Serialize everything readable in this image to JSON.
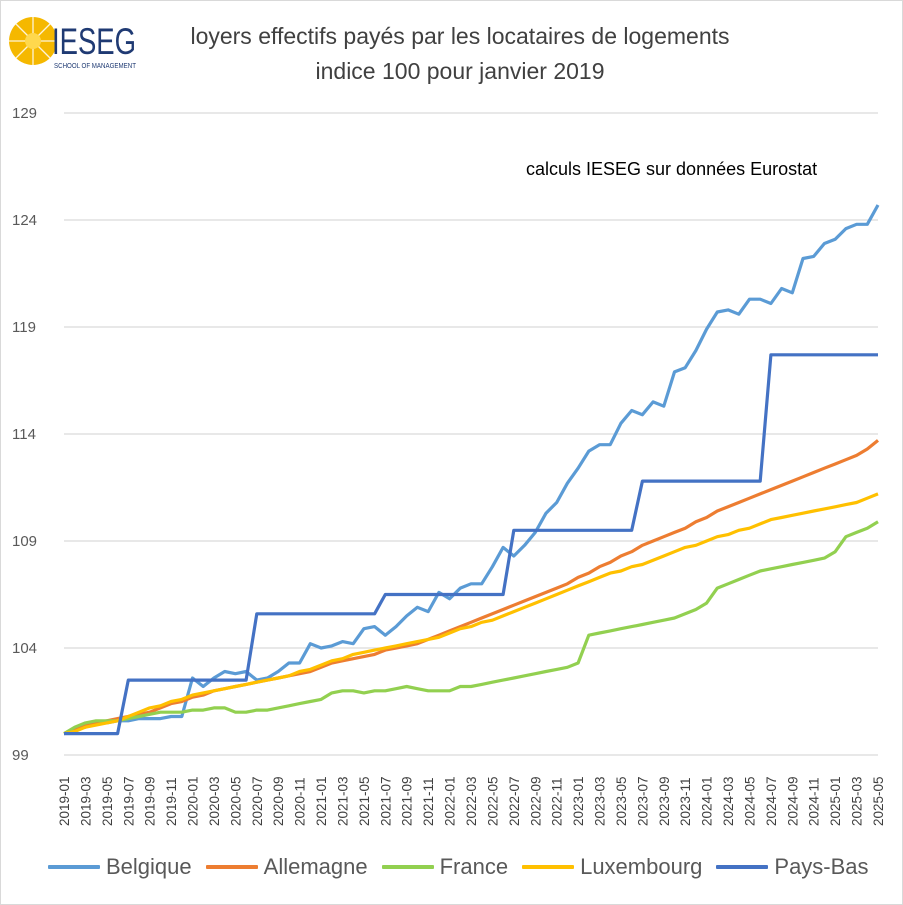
{
  "header": {
    "logo": {
      "icon": "sun-logo-icon",
      "name": "IESEG",
      "subtitle": "SCHOOL OF MANAGEMENT",
      "color": "#f5b800"
    },
    "title_line1": "loyers effectifs payés par les locataires de logements",
    "title_line2": "indice 100 pour janvier 2019"
  },
  "annotation": "calculs IESEG sur données Eurostat",
  "chart_data": {
    "type": "line",
    "title": "loyers effectifs payés par les locataires de logements",
    "subtitle": "indice 100 pour janvier 2019",
    "xlabel": "",
    "ylabel": "",
    "ylim": [
      99,
      129
    ],
    "yticks": [
      99,
      104,
      109,
      114,
      119,
      124,
      129
    ],
    "grid": true,
    "legend_position": "bottom",
    "x_start": "2019-01",
    "x_end": "2025-05",
    "xtick_labels": [
      "2019-01",
      "2019-03",
      "2019-05",
      "2019-07",
      "2019-09",
      "2019-11",
      "2020-01",
      "2020-03",
      "2020-05",
      "2020-07",
      "2020-09",
      "2020-11",
      "2021-01",
      "2021-03",
      "2021-05",
      "2021-07",
      "2021-09",
      "2021-11",
      "2022-01",
      "2022-03",
      "2022-05",
      "2022-07",
      "2022-09",
      "2022-11",
      "2023-01",
      "2023-03",
      "2023-05",
      "2023-07",
      "2023-09",
      "2023-11",
      "2024-01",
      "2024-03",
      "2024-05",
      "2024-07",
      "2024-09",
      "2024-11",
      "2025-01",
      "2025-03",
      "2025-05"
    ],
    "series": [
      {
        "name": "Belgique",
        "color": "#5b9bd5",
        "values": [
          100.0,
          100.2,
          100.3,
          100.5,
          100.5,
          100.6,
          100.6,
          100.7,
          100.7,
          100.7,
          100.8,
          100.8,
          102.6,
          102.2,
          102.6,
          102.9,
          102.8,
          102.9,
          102.5,
          102.6,
          102.9,
          103.3,
          103.3,
          104.2,
          104.0,
          104.1,
          104.3,
          104.2,
          104.9,
          105.0,
          104.6,
          105.0,
          105.5,
          105.9,
          105.7,
          106.6,
          106.3,
          106.8,
          107.0,
          107.0,
          107.8,
          108.7,
          108.3,
          108.8,
          109.4,
          110.3,
          110.8,
          111.7,
          112.4,
          113.2,
          113.5,
          113.5,
          114.5,
          115.1,
          114.9,
          115.5,
          115.3,
          116.9,
          117.1,
          117.9,
          118.9,
          119.7,
          119.8,
          119.6,
          120.3,
          120.3,
          120.1,
          120.8,
          120.6,
          122.2,
          122.3,
          122.9,
          123.1,
          123.6,
          123.8,
          123.8,
          124.7
        ]
      },
      {
        "name": "Allemagne",
        "color": "#ed7d31",
        "values": [
          100.0,
          100.2,
          100.4,
          100.5,
          100.6,
          100.7,
          100.8,
          100.9,
          101.0,
          101.2,
          101.4,
          101.5,
          101.7,
          101.8,
          102.0,
          102.1,
          102.2,
          102.3,
          102.4,
          102.5,
          102.6,
          102.7,
          102.8,
          102.9,
          103.1,
          103.3,
          103.4,
          103.5,
          103.6,
          103.7,
          103.9,
          104.0,
          104.1,
          104.2,
          104.4,
          104.6,
          104.8,
          105.0,
          105.2,
          105.4,
          105.6,
          105.8,
          106.0,
          106.2,
          106.4,
          106.6,
          106.8,
          107.0,
          107.3,
          107.5,
          107.8,
          108.0,
          108.3,
          108.5,
          108.8,
          109.0,
          109.2,
          109.4,
          109.6,
          109.9,
          110.1,
          110.4,
          110.6,
          110.8,
          111.0,
          111.2,
          111.4,
          111.6,
          111.8,
          112.0,
          112.2,
          112.4,
          112.6,
          112.8,
          113.0,
          113.3,
          113.7
        ]
      },
      {
        "name": "France",
        "color": "#92d050",
        "values": [
          100.0,
          100.3,
          100.5,
          100.6,
          100.6,
          100.6,
          100.7,
          100.8,
          100.9,
          101.0,
          101.0,
          101.0,
          101.1,
          101.1,
          101.2,
          101.2,
          101.0,
          101.0,
          101.1,
          101.1,
          101.2,
          101.3,
          101.4,
          101.5,
          101.6,
          101.9,
          102.0,
          102.0,
          101.9,
          102.0,
          102.0,
          102.1,
          102.2,
          102.1,
          102.0,
          102.0,
          102.0,
          102.2,
          102.2,
          102.3,
          102.4,
          102.5,
          102.6,
          102.7,
          102.8,
          102.9,
          103.0,
          103.1,
          103.3,
          104.6,
          104.7,
          104.8,
          104.9,
          105.0,
          105.1,
          105.2,
          105.3,
          105.4,
          105.6,
          105.8,
          106.1,
          106.8,
          107.0,
          107.2,
          107.4,
          107.6,
          107.7,
          107.8,
          107.9,
          108.0,
          108.1,
          108.2,
          108.5,
          109.2,
          109.4,
          109.6,
          109.9
        ]
      },
      {
        "name": "Luxembourg",
        "color": "#ffc000",
        "values": [
          100.0,
          100.1,
          100.3,
          100.4,
          100.5,
          100.6,
          100.8,
          101.0,
          101.2,
          101.3,
          101.5,
          101.6,
          101.8,
          101.9,
          102.0,
          102.1,
          102.2,
          102.3,
          102.4,
          102.5,
          102.6,
          102.7,
          102.9,
          103.0,
          103.2,
          103.4,
          103.5,
          103.7,
          103.8,
          103.9,
          104.0,
          104.1,
          104.2,
          104.3,
          104.4,
          104.5,
          104.7,
          104.9,
          105.0,
          105.2,
          105.3,
          105.5,
          105.7,
          105.9,
          106.1,
          106.3,
          106.5,
          106.7,
          106.9,
          107.1,
          107.3,
          107.5,
          107.6,
          107.8,
          107.9,
          108.1,
          108.3,
          108.5,
          108.7,
          108.8,
          109.0,
          109.2,
          109.3,
          109.5,
          109.6,
          109.8,
          110.0,
          110.1,
          110.2,
          110.3,
          110.4,
          110.5,
          110.6,
          110.7,
          110.8,
          111.0,
          111.2
        ]
      },
      {
        "name": "Pays-Bas",
        "color": "#4472c4",
        "values": [
          100.0,
          100.0,
          100.0,
          100.0,
          100.0,
          100.0,
          102.5,
          102.5,
          102.5,
          102.5,
          102.5,
          102.5,
          102.5,
          102.5,
          102.5,
          102.5,
          102.5,
          102.5,
          105.6,
          105.6,
          105.6,
          105.6,
          105.6,
          105.6,
          105.6,
          105.6,
          105.6,
          105.6,
          105.6,
          105.6,
          106.5,
          106.5,
          106.5,
          106.5,
          106.5,
          106.5,
          106.5,
          106.5,
          106.5,
          106.5,
          106.5,
          106.5,
          109.5,
          109.5,
          109.5,
          109.5,
          109.5,
          109.5,
          109.5,
          109.5,
          109.5,
          109.5,
          109.5,
          109.5,
          111.8,
          111.8,
          111.8,
          111.8,
          111.8,
          111.8,
          111.8,
          111.8,
          111.8,
          111.8,
          111.8,
          111.8,
          117.7,
          117.7,
          117.7,
          117.7,
          117.7,
          117.7,
          117.7,
          117.7,
          117.7,
          117.7,
          117.7
        ]
      }
    ]
  }
}
